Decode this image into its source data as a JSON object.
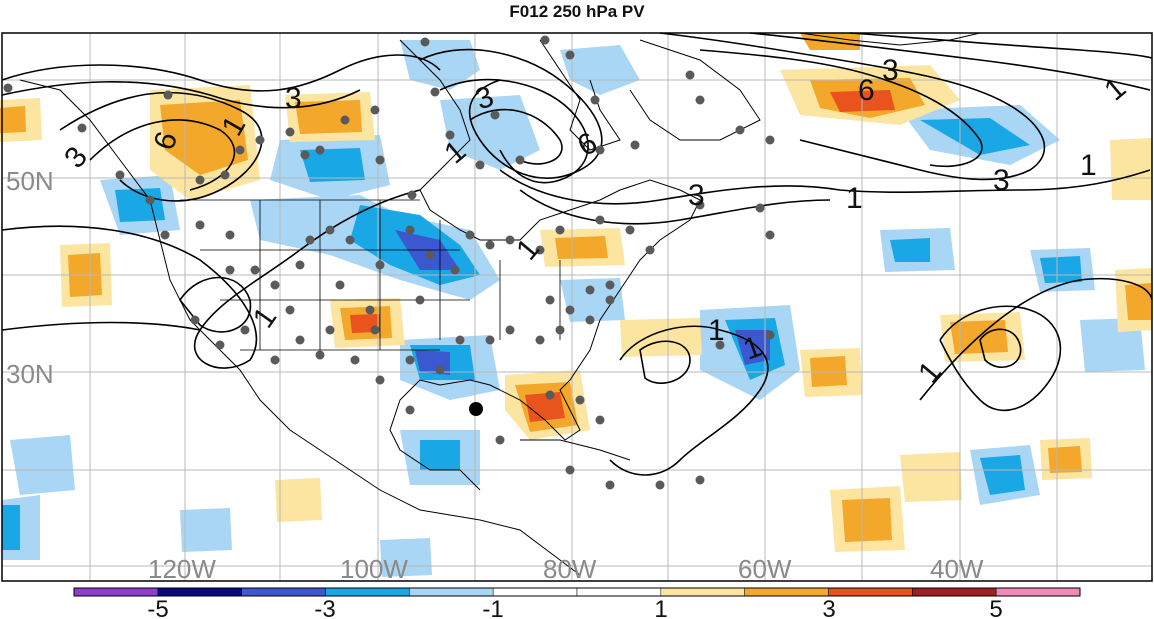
{
  "title": "F012 250 hPa PV",
  "map": {
    "lat_labels": [
      "50N",
      "30N"
    ],
    "lon_labels": [
      "120W",
      "100W",
      "80W",
      "60W",
      "40W"
    ]
  },
  "contour_labels": [
    "3",
    "6",
    "1",
    "3",
    "1",
    "6",
    "3",
    "1",
    "3",
    "1",
    "6",
    "1",
    "1",
    "1",
    "1",
    "1",
    "3",
    "3",
    "1"
  ],
  "colorbar": {
    "tick_labels": [
      "-5",
      "-3",
      "-1",
      "1",
      "3",
      "5"
    ],
    "colors": [
      "#8e3fc9",
      "#0a0a7a",
      "#3c58cf",
      "#1aa7e6",
      "#a9d6f5",
      "#ffffff",
      "#ffffff",
      "#fbe5a0",
      "#f3a82b",
      "#e8531e",
      "#9c2121",
      "#f08ab8"
    ]
  },
  "colors": {
    "neg_strong": "#3c58cf",
    "neg_mid": "#1aa7e6",
    "neg_weak": "#a9d6f5",
    "pos_weak": "#fbe5a0",
    "pos_mid": "#f3a82b",
    "pos_strong": "#e8531e",
    "marker": "#5a5a5a"
  }
}
